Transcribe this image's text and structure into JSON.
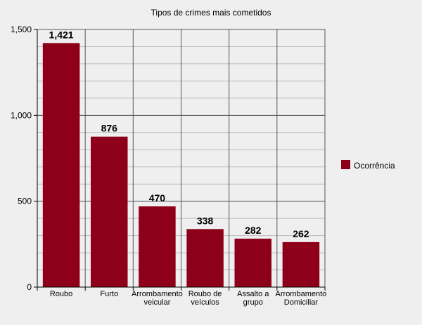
{
  "chart_data": {
    "type": "bar",
    "title": "Tipos de crimes mais cometidos",
    "categories": [
      [
        "Roubo"
      ],
      [
        "Furto"
      ],
      [
        "Arrombamento",
        "veicular"
      ],
      [
        "Roubo de",
        "veículos"
      ],
      [
        "Assalto a",
        "grupo"
      ],
      [
        "Arrombamento",
        "Domiciliar"
      ]
    ],
    "series": [
      {
        "name": "Ocorrência",
        "values": [
          1421,
          876,
          470,
          338,
          282,
          262
        ],
        "labels": [
          "1,421",
          "876",
          "470",
          "338",
          "282",
          "262"
        ]
      }
    ],
    "ylim": [
      0,
      1500
    ],
    "yticks": [
      0,
      500,
      1000,
      1500
    ],
    "ytick_labels": [
      "0",
      "500",
      "1,000",
      "1,500"
    ],
    "grid": true,
    "legend": "right",
    "colors": {
      "bar": "#8e0019",
      "background": "#efefef",
      "major_grid": "#555555",
      "minor_grid": "#bbbbbb"
    }
  }
}
